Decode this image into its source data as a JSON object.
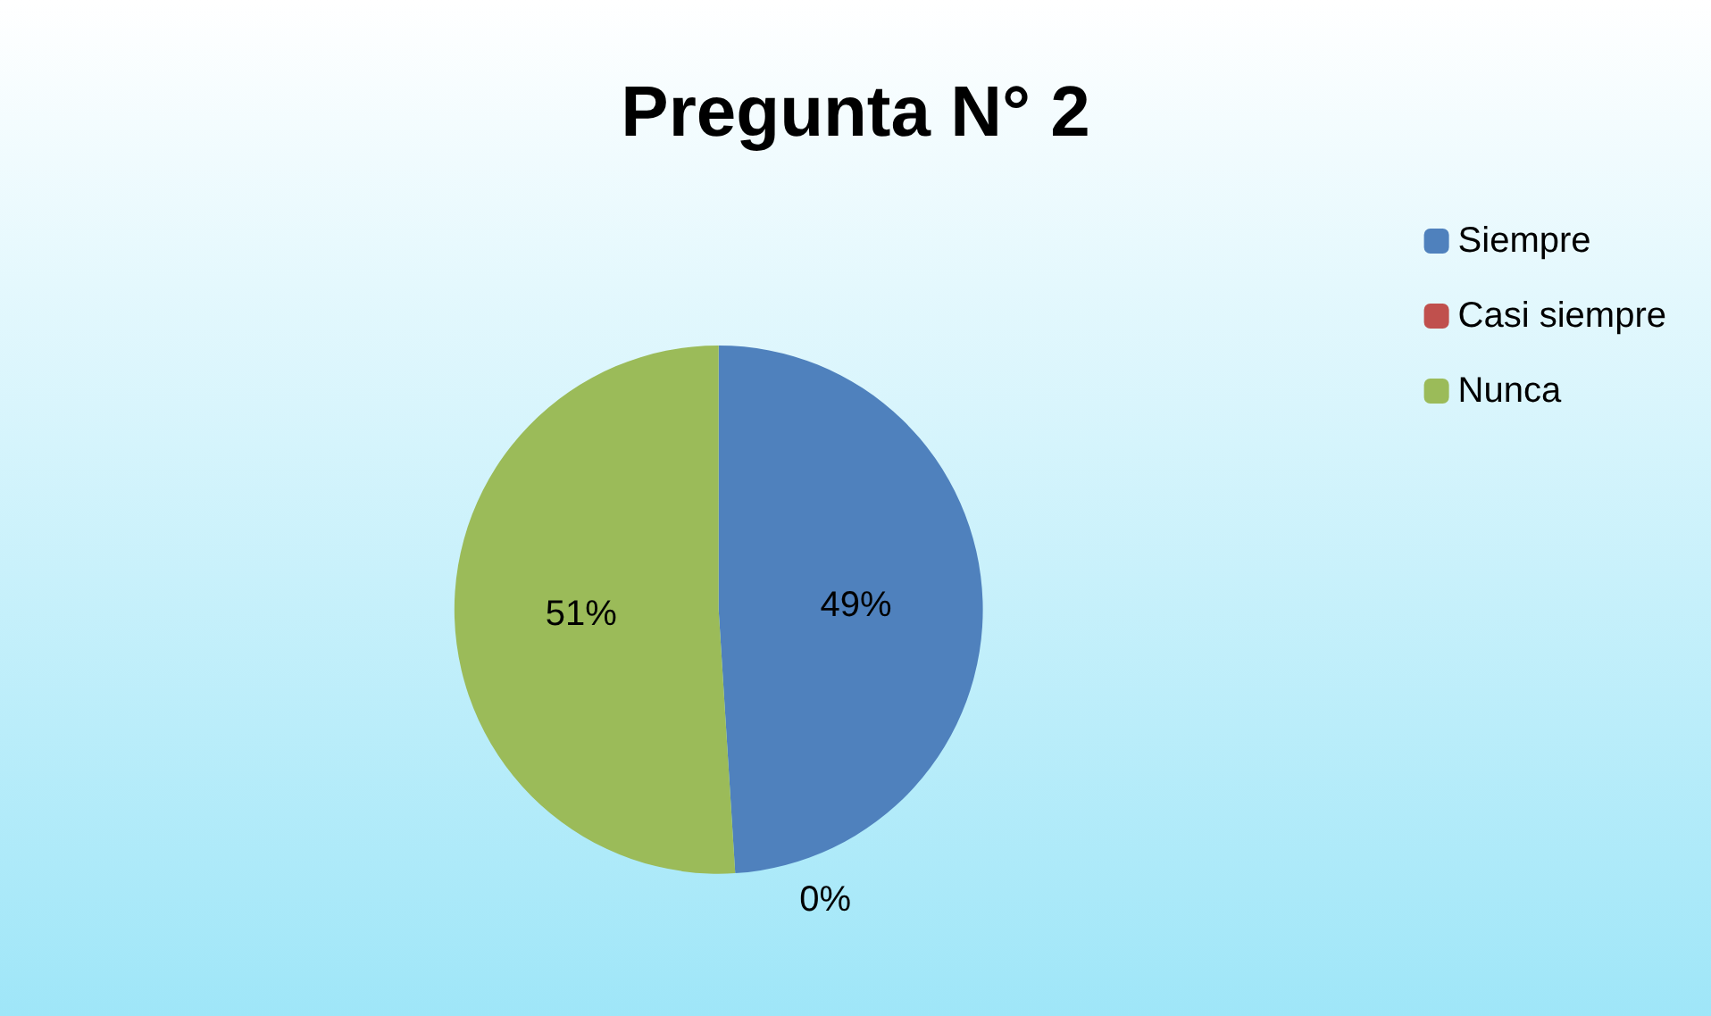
{
  "chart_data": {
    "type": "pie",
    "title": "Pregunta N° 2",
    "categories": [
      "Siempre",
      "Casi siempre",
      "Nunca"
    ],
    "values": [
      49,
      0,
      51
    ],
    "colors": [
      "#4f81bd",
      "#c0504d",
      "#9bbb59"
    ],
    "value_labels": [
      "49%",
      "0%",
      "51%"
    ],
    "legend": "top right"
  }
}
